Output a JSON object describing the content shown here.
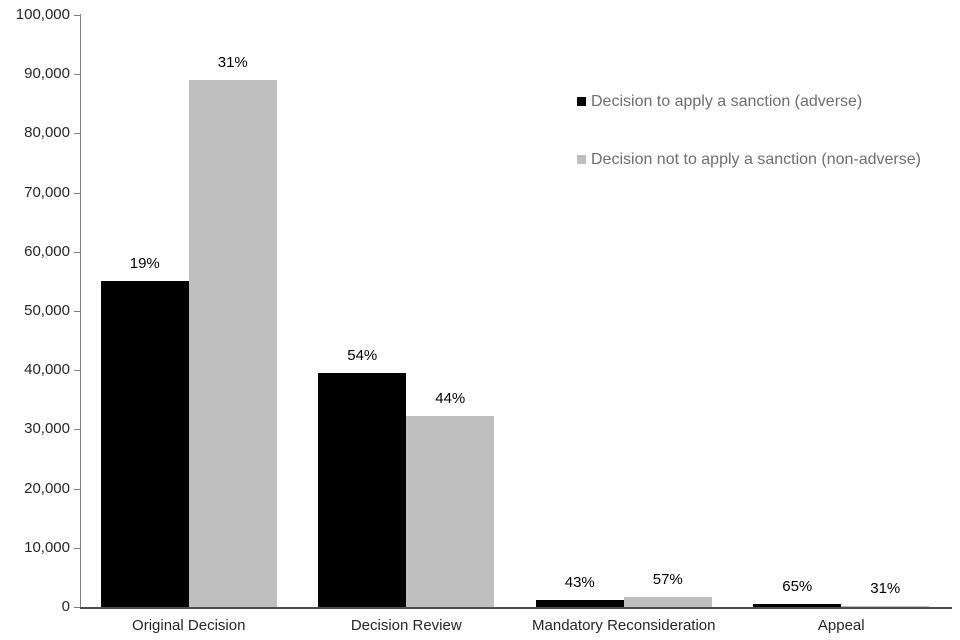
{
  "chart_data": {
    "type": "bar",
    "title": "",
    "xlabel": "",
    "ylabel": "",
    "categories": [
      "Original Decision",
      "Decision Review",
      "Mandatory Reconsideration",
      "Appeal"
    ],
    "series": [
      {
        "name": "Decision to apply a sanction (adverse)",
        "color": "#000000",
        "values": [
          55000,
          39500,
          1250,
          500
        ],
        "bar_labels": [
          "19%",
          "54%",
          "43%",
          "65%"
        ]
      },
      {
        "name": "Decision not to apply a sanction (non-adverse)",
        "color": "#bfbfbf",
        "values": [
          89000,
          32200,
          1650,
          240
        ],
        "bar_labels": [
          "31%",
          "44%",
          "57%",
          "31%"
        ]
      }
    ],
    "ylim": [
      0,
      100000
    ],
    "ytick_step": 10000,
    "ytick_labels": [
      "0",
      "10,000",
      "20,000",
      "30,000",
      "40,000",
      "50,000",
      "60,000",
      "70,000",
      "80,000",
      "90,000",
      "100,000"
    ],
    "grid": false,
    "legend_position": "upper-right-inside",
    "colors": {
      "background": "#ffffff",
      "axis_line": "#808080",
      "baseline": "#4d4d4d",
      "tick_text": "#262626",
      "data_label_text": "#000000",
      "legend_text": "#6e6e6e"
    }
  }
}
